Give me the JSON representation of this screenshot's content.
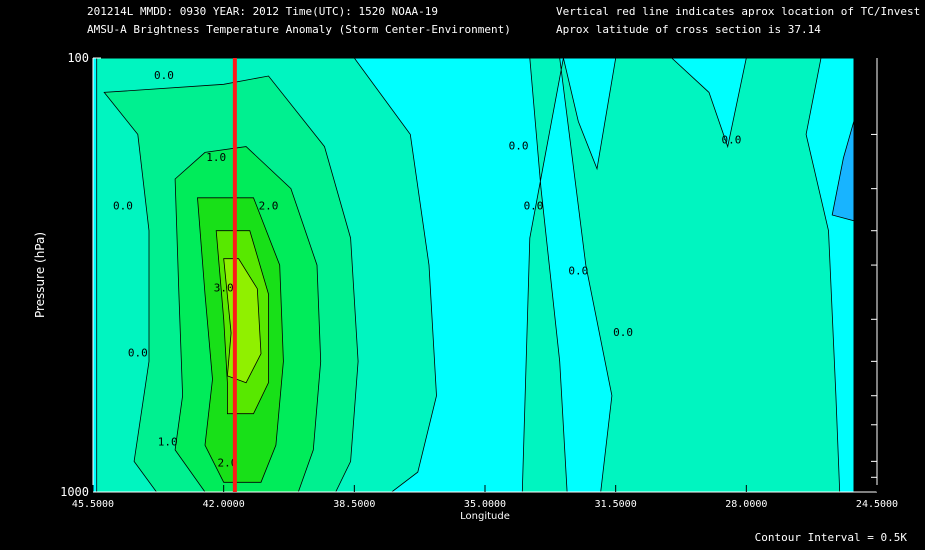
{
  "header": {
    "line1_left": "201214L  MMDD: 0930 YEAR: 2012 Time(UTC): 1520 NOAA-19",
    "line2_left": "AMSU-A Brightness Temperature Anomaly (Storm Center-Environment)",
    "line1_right": "Vertical red line indicates aprox location of TC/Invest",
    "line2_right": "Aprox latitude of cross section is 37.14"
  },
  "footer": {
    "contour_interval": "Contour Interval = 0.5K"
  },
  "colors": {
    "background": "#000000",
    "level_neg": "#18b4ff",
    "level_0": "#00ffff",
    "level_05": "#00f5c0",
    "level_1": "#00f090",
    "level_15": "#00ec5a",
    "level_2": "#18e018",
    "level_25": "#58e800",
    "level_3": "#90f000",
    "tc_line": "#ff1a1a"
  },
  "chart_data": {
    "type": "heatmap",
    "subtype": "filled-contour cross section",
    "xlabel": "Longitude",
    "ylabel": "Pressure (hPa)",
    "x_ticks": [
      "45.5000",
      "42.0000",
      "38.5000",
      "35.0000",
      "31.5000",
      "28.0000",
      "24.5000"
    ],
    "x_tick_values": [
      45.5,
      42.0,
      38.5,
      35.0,
      31.5,
      28.0,
      24.5
    ],
    "xlim": [
      45.5,
      24.5
    ],
    "y_ticks": [
      "100",
      "1000"
    ],
    "ylim": [
      1000,
      100
    ],
    "y_scale": "log",
    "minor_y_ticks_hpa": [
      150,
      200,
      250,
      300,
      400,
      500,
      600,
      700,
      850,
      925
    ],
    "contour_interval_k": 0.5,
    "tc_longitude": 41.7,
    "contour_labels": [
      {
        "text": "0.0",
        "lon": 43.6,
        "p": 110
      },
      {
        "text": "0.0",
        "lon": 44.7,
        "p": 220
      },
      {
        "text": "0.0",
        "lon": 44.3,
        "p": 480
      },
      {
        "text": "0.0",
        "lon": 34.1,
        "p": 160
      },
      {
        "text": "0.0",
        "lon": 33.7,
        "p": 220
      },
      {
        "text": "0.0",
        "lon": 32.5,
        "p": 310
      },
      {
        "text": "0.0",
        "lon": 31.3,
        "p": 430
      },
      {
        "text": "0.0",
        "lon": 28.4,
        "p": 155
      },
      {
        "text": "1.0",
        "lon": 42.2,
        "p": 170
      },
      {
        "text": "1.0",
        "lon": 43.5,
        "p": 770
      },
      {
        "text": "2.0",
        "lon": 40.8,
        "p": 220
      },
      {
        "text": "2.0",
        "lon": 41.9,
        "p": 860
      },
      {
        "text": "3.0",
        "lon": 42.0,
        "p": 340
      }
    ]
  }
}
